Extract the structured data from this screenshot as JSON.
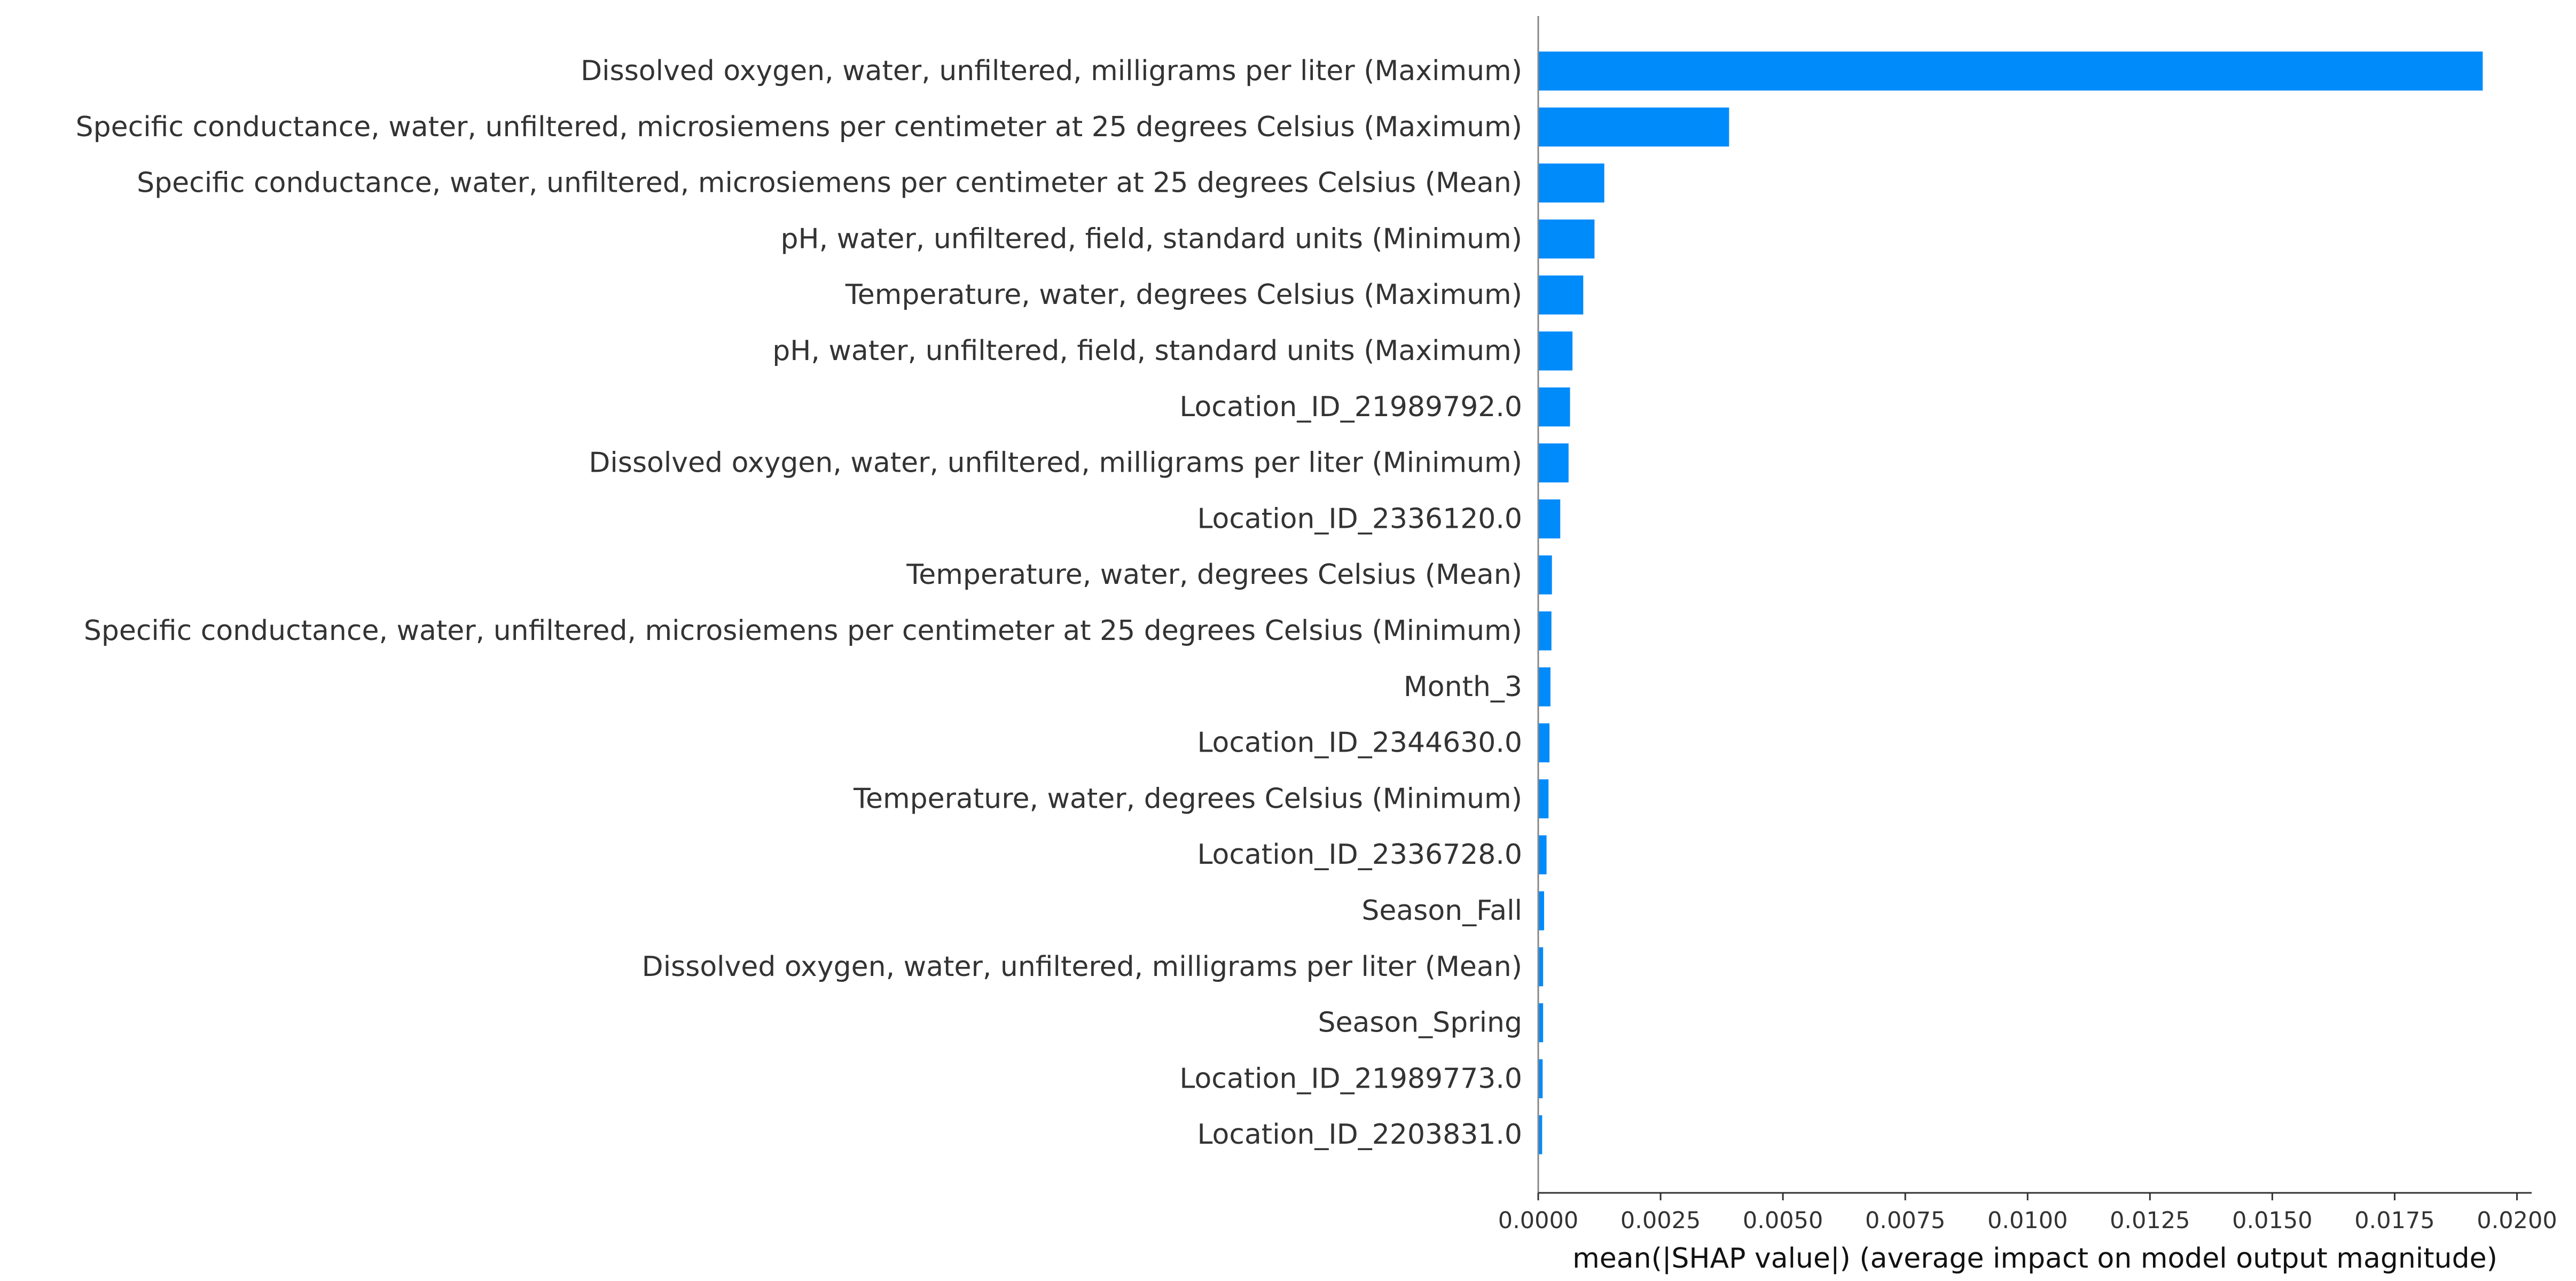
{
  "chart_data": {
    "type": "bar",
    "orientation": "horizontal",
    "categories": [
      "Dissolved oxygen, water, unfiltered, milligrams per liter (Maximum)",
      "Specific conductance, water, unfiltered, microsiemens per centimeter at 25 degrees Celsius (Maximum)",
      "Specific conductance, water, unfiltered, microsiemens per centimeter at 25 degrees Celsius (Mean)",
      "pH, water, unfiltered, field, standard units (Minimum)",
      "Temperature, water, degrees Celsius (Maximum)",
      "pH, water, unfiltered, field, standard units (Maximum)",
      "Location_ID_21989792.0",
      "Dissolved oxygen, water, unfiltered, milligrams per liter (Minimum)",
      "Location_ID_2336120.0",
      "Temperature, water, degrees Celsius (Mean)",
      "Specific conductance, water, unfiltered, microsiemens per centimeter at 25 degrees Celsius (Minimum)",
      "Month_3",
      "Location_ID_2344630.0",
      "Temperature, water, degrees Celsius (Minimum)",
      "Location_ID_2336728.0",
      "Season_Fall",
      "Dissolved oxygen, water, unfiltered, milligrams per liter (Mean)",
      "Season_Spring",
      "Location_ID_21989773.0",
      "Location_ID_2203831.0"
    ],
    "values": [
      0.0193,
      0.0039,
      0.00135,
      0.00115,
      0.00092,
      0.0007,
      0.00065,
      0.00062,
      0.00045,
      0.00028,
      0.00027,
      0.00025,
      0.00023,
      0.00021,
      0.00017,
      0.00012,
      0.0001,
      0.0001,
      9e-05,
      8e-05
    ],
    "xlim": [
      0,
      0.0203
    ],
    "xticks": [
      0,
      0.0025,
      0.005,
      0.0075,
      0.01,
      0.0125,
      0.015,
      0.0175,
      0.02
    ],
    "xtick_labels": [
      "0.0000",
      "0.0025",
      "0.0050",
      "0.0075",
      "0.0100",
      "0.0125",
      "0.0150",
      "0.0175",
      "0.0200"
    ],
    "xlabel": "mean(|SHAP value|) (average impact on model output magnitude)",
    "ylabel": "",
    "title": "",
    "grid": false,
    "bar_color": "#008bfb",
    "axis_color": "#888888",
    "label_color": "#333333"
  }
}
